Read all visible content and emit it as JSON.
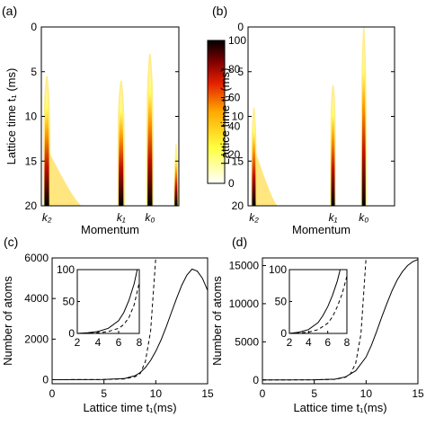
{
  "chart_data": [
    {
      "panel": "(a)",
      "type": "heatmap",
      "xlabel": "Momentum",
      "ylabel": "Lattice time t₁ (ms)",
      "ylim": [
        0,
        20
      ],
      "yticks": [
        0,
        5,
        10,
        15,
        20
      ],
      "xticks": [
        {
          "label": "k₂",
          "x": 0.04
        },
        {
          "label": "k₁",
          "x": 0.58
        },
        {
          "label": "k₀",
          "x": 0.79
        }
      ],
      "colorbar": {
        "min": 0,
        "max": 100,
        "ticks": [
          0,
          20,
          40,
          60,
          80,
          100
        ]
      },
      "spikes": [
        {
          "x": 0.04,
          "width": 0.035,
          "onset": 5.5,
          "grow": 4.5,
          "tail": 0.9
        },
        {
          "x": 0.58,
          "width": 0.035,
          "onset": 6.0,
          "grow": 4.0,
          "tail": 0.0
        },
        {
          "x": 0.79,
          "width": 0.035,
          "onset": 3.0,
          "grow": 5.5,
          "tail": 0.0
        },
        {
          "x": 0.98,
          "width": 0.022,
          "onset": 13.0,
          "grow": 5.0,
          "tail": 0.0
        }
      ]
    },
    {
      "panel": "(b)",
      "type": "heatmap",
      "xlabel": "Momentum",
      "ylabel": "Lattice time t₁ (ms)",
      "ylim": [
        0,
        20
      ],
      "yticks": [
        0,
        5,
        10,
        15,
        20
      ],
      "xticks": [
        {
          "label": "k₂",
          "x": 0.04
        },
        {
          "label": "k₁",
          "x": 0.58
        },
        {
          "label": "k₀",
          "x": 0.79
        }
      ],
      "spikes": [
        {
          "x": 0.04,
          "width": 0.025,
          "onset": 9.0,
          "grow": 4.0,
          "tail": 0.6
        },
        {
          "x": 0.58,
          "width": 0.025,
          "onset": 6.5,
          "grow": 3.0,
          "tail": 0.0
        },
        {
          "x": 0.79,
          "width": 0.025,
          "onset": 0.0,
          "grow": 7.0,
          "tail": 0.0
        }
      ]
    },
    {
      "panel": "(c)",
      "type": "line",
      "xlabel": "Lattice time t₁(ms)",
      "ylabel": "Number of atoms",
      "xlim": [
        0,
        15
      ],
      "ylim": [
        -200,
        6000
      ],
      "xticks": [
        0,
        5,
        10,
        15
      ],
      "yticks": [
        0,
        2000,
        4000,
        6000
      ],
      "series": [
        {
          "style": "solid",
          "x": [
            0,
            5,
            7,
            8,
            8.5,
            9,
            9.5,
            10,
            10.5,
            11,
            11.5,
            12,
            12.5,
            13,
            13.5,
            14,
            14.5,
            15
          ],
          "y": [
            0,
            10,
            60,
            200,
            350,
            600,
            950,
            1400,
            1950,
            2600,
            3300,
            4000,
            4650,
            5150,
            5450,
            5350,
            5000,
            4400
          ]
        },
        {
          "style": "dashed",
          "x": [
            0,
            5,
            7,
            8,
            8.5,
            9,
            9.5,
            10
          ],
          "y": [
            0,
            8,
            40,
            150,
            300,
            900,
            2400,
            6000
          ]
        }
      ],
      "inset": {
        "xlim": [
          2,
          8
        ],
        "ylim": [
          0,
          100
        ],
        "xticks": [
          2,
          4,
          6,
          8
        ],
        "yticks": [
          0,
          50,
          100
        ],
        "series": [
          {
            "style": "solid",
            "x": [
              2,
              3,
              4,
              5,
              6,
              6.5,
              7,
              7.5,
              7.8
            ],
            "y": [
              0,
              1,
              3,
              8,
              20,
              33,
              52,
              78,
              100
            ]
          },
          {
            "style": "dashed",
            "x": [
              2,
              3,
              4,
              5,
              6,
              6.5,
              7,
              7.5,
              8
            ],
            "y": [
              0,
              0.5,
              1,
              3,
              8,
              14,
              25,
              45,
              80
            ]
          }
        ]
      }
    },
    {
      "panel": "(d)",
      "type": "line",
      "xlabel": "Lattice time t₁(ms)",
      "ylabel": "Number of atoms",
      "xlim": [
        0,
        15
      ],
      "ylim": [
        -500,
        16000
      ],
      "xticks": [
        0,
        5,
        10,
        15
      ],
      "yticks": [
        0,
        5000,
        10000,
        15000
      ],
      "series": [
        {
          "style": "solid",
          "x": [
            0,
            5,
            7,
            8,
            9,
            10,
            10.5,
            11,
            11.5,
            12,
            12.5,
            13,
            13.5,
            14,
            14.5,
            15
          ],
          "y": [
            0,
            20,
            100,
            400,
            1200,
            3000,
            4500,
            6300,
            8200,
            10000,
            11700,
            13100,
            14200,
            15000,
            15500,
            15800
          ]
        },
        {
          "style": "dashed",
          "x": [
            0,
            5,
            7,
            8,
            8.5,
            9,
            9.5,
            10
          ],
          "y": [
            0,
            15,
            80,
            350,
            800,
            2200,
            6000,
            16000
          ]
        }
      ],
      "inset": {
        "xlim": [
          2,
          8
        ],
        "ylim": [
          0,
          100
        ],
        "xticks": [
          2,
          4,
          6,
          8
        ],
        "yticks": [
          0,
          50,
          100
        ],
        "series": [
          {
            "style": "solid",
            "x": [
              2,
              3,
              4,
              5,
              5.5,
              6,
              6.5,
              7,
              7.3
            ],
            "y": [
              0,
              2,
              6,
              17,
              28,
              42,
              60,
              82,
              100
            ]
          },
          {
            "style": "dashed",
            "x": [
              2,
              3,
              4,
              5,
              6,
              6.5,
              7,
              7.5,
              8
            ],
            "y": [
              0,
              1,
              2,
              6,
              16,
              26,
              42,
              62,
              90
            ]
          }
        ]
      }
    }
  ]
}
